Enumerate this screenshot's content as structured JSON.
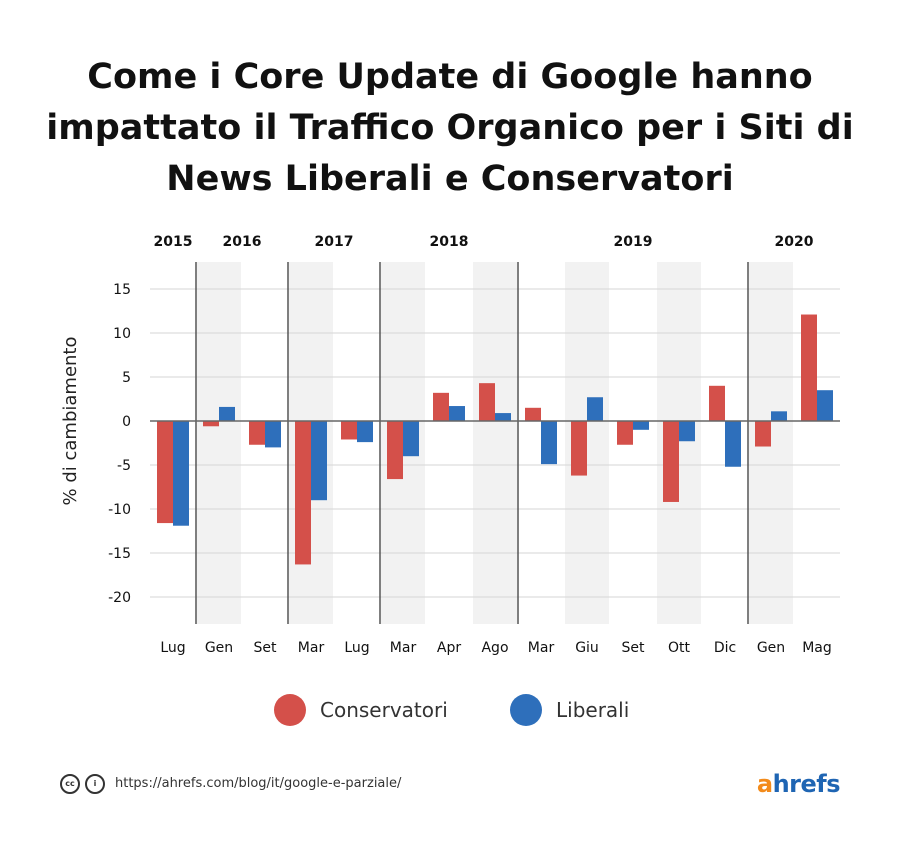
{
  "title": "Come i Core Update di Google hanno impattato il Traffico Organico per i Siti di News Liberali e Conservatori",
  "chart_data": {
    "type": "bar",
    "title": "Come i Core Update di Google hanno impattato il Traffico Organico per i Siti di News Liberali e Conservatori",
    "xlabel": "",
    "ylabel": "% di cambiamento",
    "ylim": [
      -23,
      18
    ],
    "yticks": [
      15,
      10,
      5,
      0,
      -5,
      -10,
      -15,
      -20
    ],
    "grid": true,
    "categories": [
      "Lug",
      "Gen",
      "Set",
      "Mar",
      "Lug",
      "Mar",
      "Apr",
      "Ago",
      "Mar",
      "Giu",
      "Set",
      "Ott",
      "Dic",
      "Gen",
      "Mag"
    ],
    "years": [
      {
        "label": "2015",
        "from": 0,
        "to": 0
      },
      {
        "label": "2016",
        "from": 1,
        "to": 2
      },
      {
        "label": "2017",
        "from": 3,
        "to": 4
      },
      {
        "label": "2018",
        "from": 5,
        "to": 7
      },
      {
        "label": "2019",
        "from": 8,
        "to": 12
      },
      {
        "label": "2020",
        "from": 13,
        "to": 14
      }
    ],
    "series": [
      {
        "name": "Conservatori",
        "color": "#d4504a",
        "values": [
          -11.6,
          -0.6,
          -2.7,
          -16.3,
          -2.1,
          -6.6,
          3.2,
          4.3,
          1.5,
          -6.2,
          -2.7,
          -9.2,
          4.0,
          -2.9,
          12.1
        ]
      },
      {
        "name": "Liberali",
        "color": "#2e6fbb",
        "values": [
          -11.9,
          1.6,
          -3.0,
          -9.0,
          -2.4,
          -4.0,
          1.7,
          0.9,
          -4.9,
          2.7,
          -1.0,
          -2.3,
          -5.2,
          1.1,
          3.5
        ]
      }
    ]
  },
  "legend": {
    "items": [
      {
        "label": "Conservatori",
        "color": "#d4504a"
      },
      {
        "label": "Liberali",
        "color": "#2e6fbb"
      }
    ]
  },
  "footer": {
    "cc_label": "cc",
    "by_label": "i",
    "url": "https://ahrefs.com/blog/it/google-e-parziale/",
    "brand_a": "a",
    "brand_rest": "hrefs"
  }
}
